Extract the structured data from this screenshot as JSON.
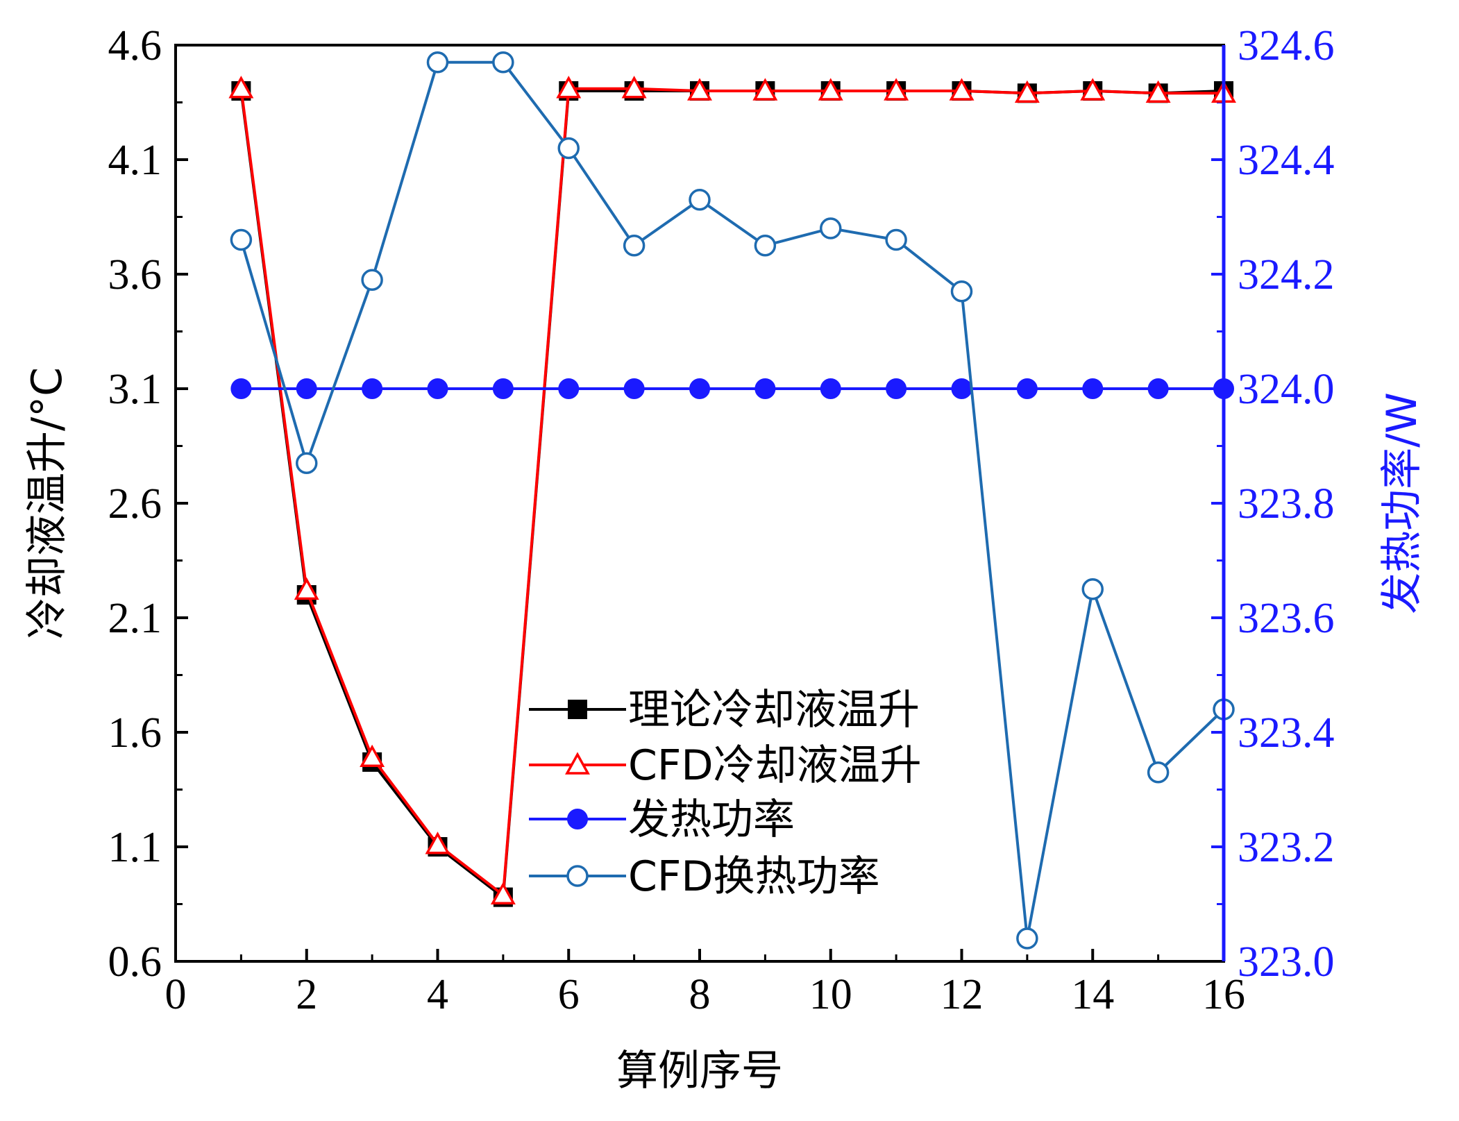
{
  "chart_data": {
    "type": "line",
    "xlabel": "算例序号",
    "ylabel_left": "冷却液温升/°C",
    "ylabel_right": "发热功率/W",
    "xlim": [
      0,
      16
    ],
    "ylim_left": [
      0.6,
      4.6
    ],
    "ylim_right": [
      323.0,
      324.6
    ],
    "xticks": [
      0,
      2,
      4,
      6,
      8,
      10,
      12,
      14,
      16
    ],
    "yticks_left": [
      "0.6",
      "1.1",
      "1.6",
      "2.1",
      "2.6",
      "3.1",
      "3.6",
      "4.1",
      "4.6"
    ],
    "yticks_right": [
      "323.0",
      "323.2",
      "323.4",
      "323.6",
      "323.8",
      "324.0",
      "324.2",
      "324.4",
      "324.6"
    ],
    "legend_position": "center",
    "x": [
      1,
      2,
      3,
      4,
      5,
      6,
      7,
      8,
      9,
      10,
      11,
      12,
      13,
      14,
      15,
      16
    ],
    "series": [
      {
        "name": "理论冷却液温升",
        "axis": "left",
        "marker": "square-filled",
        "color": "#000000",
        "values": [
          4.4,
          2.2,
          1.47,
          1.1,
          0.88,
          4.4,
          4.4,
          4.4,
          4.4,
          4.4,
          4.4,
          4.4,
          4.39,
          4.4,
          4.39,
          4.4
        ]
      },
      {
        "name": "CFD冷却液温升",
        "axis": "left",
        "marker": "triangle-open",
        "color": "#ff0000",
        "values": [
          4.41,
          2.22,
          1.49,
          1.11,
          0.89,
          4.41,
          4.41,
          4.4,
          4.4,
          4.4,
          4.4,
          4.4,
          4.39,
          4.4,
          4.39,
          4.39
        ]
      },
      {
        "name": "发热功率",
        "axis": "right",
        "marker": "circle-filled",
        "color": "#1a1aff",
        "values": [
          324.0,
          324.0,
          324.0,
          324.0,
          324.0,
          324.0,
          324.0,
          324.0,
          324.0,
          324.0,
          324.0,
          324.0,
          324.0,
          324.0,
          324.0,
          324.0
        ]
      },
      {
        "name": "CFD换热功率",
        "axis": "right",
        "marker": "circle-open",
        "color": "#1e6bb0",
        "values": [
          324.26,
          323.87,
          324.19,
          324.57,
          324.57,
          324.42,
          324.25,
          324.33,
          324.25,
          324.28,
          324.26,
          324.17,
          323.04,
          323.65,
          323.33,
          323.44
        ]
      }
    ]
  }
}
